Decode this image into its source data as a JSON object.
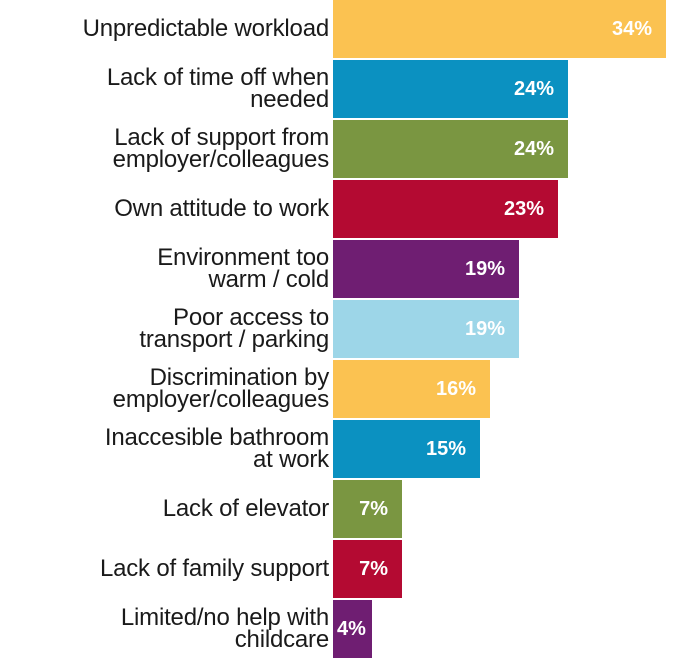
{
  "chart_data": {
    "type": "bar",
    "orientation": "horizontal",
    "categories": [
      "Unpredictable workload",
      "Lack of time off when needed",
      "Lack of support from employer/colleagues",
      "Own attitude to work",
      "Environment too warm / cold",
      "Poor access to transport / parking",
      "Discrimination by employer/colleagues",
      "Inaccesible bathroom at work",
      "Lack of elevator",
      "Lack of family support",
      "Limited/no help with childcare"
    ],
    "category_lines": [
      [
        "Unpredictable workload"
      ],
      [
        "Lack of time off when",
        "needed"
      ],
      [
        "Lack of support from",
        "employer/colleagues"
      ],
      [
        "Own attitude to work"
      ],
      [
        "Environment too",
        "warm / cold"
      ],
      [
        "Poor access to",
        "transport / parking"
      ],
      [
        "Discrimination by",
        "employer/colleagues"
      ],
      [
        "Inaccesible bathroom",
        "at work"
      ],
      [
        "Lack of elevator"
      ],
      [
        "Lack of family support"
      ],
      [
        "Limited/no help with",
        "childcare"
      ]
    ],
    "values": [
      34,
      24,
      24,
      23,
      19,
      19,
      16,
      15,
      7,
      7,
      4
    ],
    "value_labels": [
      "34%",
      "24%",
      "24%",
      "23%",
      "19%",
      "19%",
      "16%",
      "15%",
      "7%",
      "7%",
      "4%"
    ],
    "colors": [
      "#FBC251",
      "#0B91C1",
      "#7A9641",
      "#B40A32",
      "#6F1E72",
      "#9DD6E8",
      "#FBC251",
      "#0B91C1",
      "#7A9641",
      "#B40A32",
      "#6F1E72"
    ],
    "xlim": [
      0,
      34
    ],
    "title": "",
    "xlabel": "",
    "ylabel": "",
    "grid": false,
    "legend": "none"
  }
}
